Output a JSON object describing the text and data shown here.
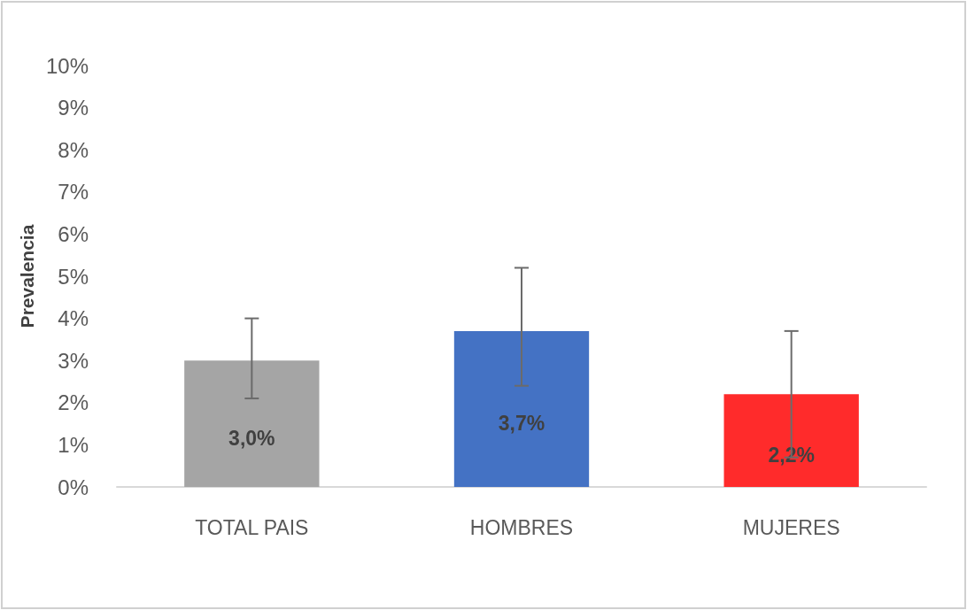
{
  "chart_data": {
    "type": "bar",
    "ylabel": "Prevalencia",
    "categories": [
      "TOTAL PAIS",
      "HOMBRES",
      "MUJERES"
    ],
    "values": [
      3.0,
      3.7,
      2.2
    ],
    "colors": [
      "#a5a5a5",
      "#4472c4",
      "#ff2b2b"
    ],
    "errors": [
      [
        2.1,
        4.0
      ],
      [
        2.4,
        5.2
      ],
      [
        0.7,
        3.7
      ]
    ],
    "value_labels": [
      "3,0%",
      "3,7%",
      "2,2%"
    ],
    "ylim": [
      0,
      10
    ],
    "yticks": [
      {
        "value": 0,
        "label": "0%"
      },
      {
        "value": 1,
        "label": "1%"
      },
      {
        "value": 2,
        "label": "2%"
      },
      {
        "value": 3,
        "label": "3%"
      },
      {
        "value": 4,
        "label": "4%"
      },
      {
        "value": 5,
        "label": "5%"
      },
      {
        "value": 6,
        "label": "6%"
      },
      {
        "value": 7,
        "label": "7%"
      },
      {
        "value": 8,
        "label": "8%"
      },
      {
        "value": 9,
        "label": "9%"
      },
      {
        "value": 10,
        "label": "10%"
      }
    ],
    "grid": false
  }
}
